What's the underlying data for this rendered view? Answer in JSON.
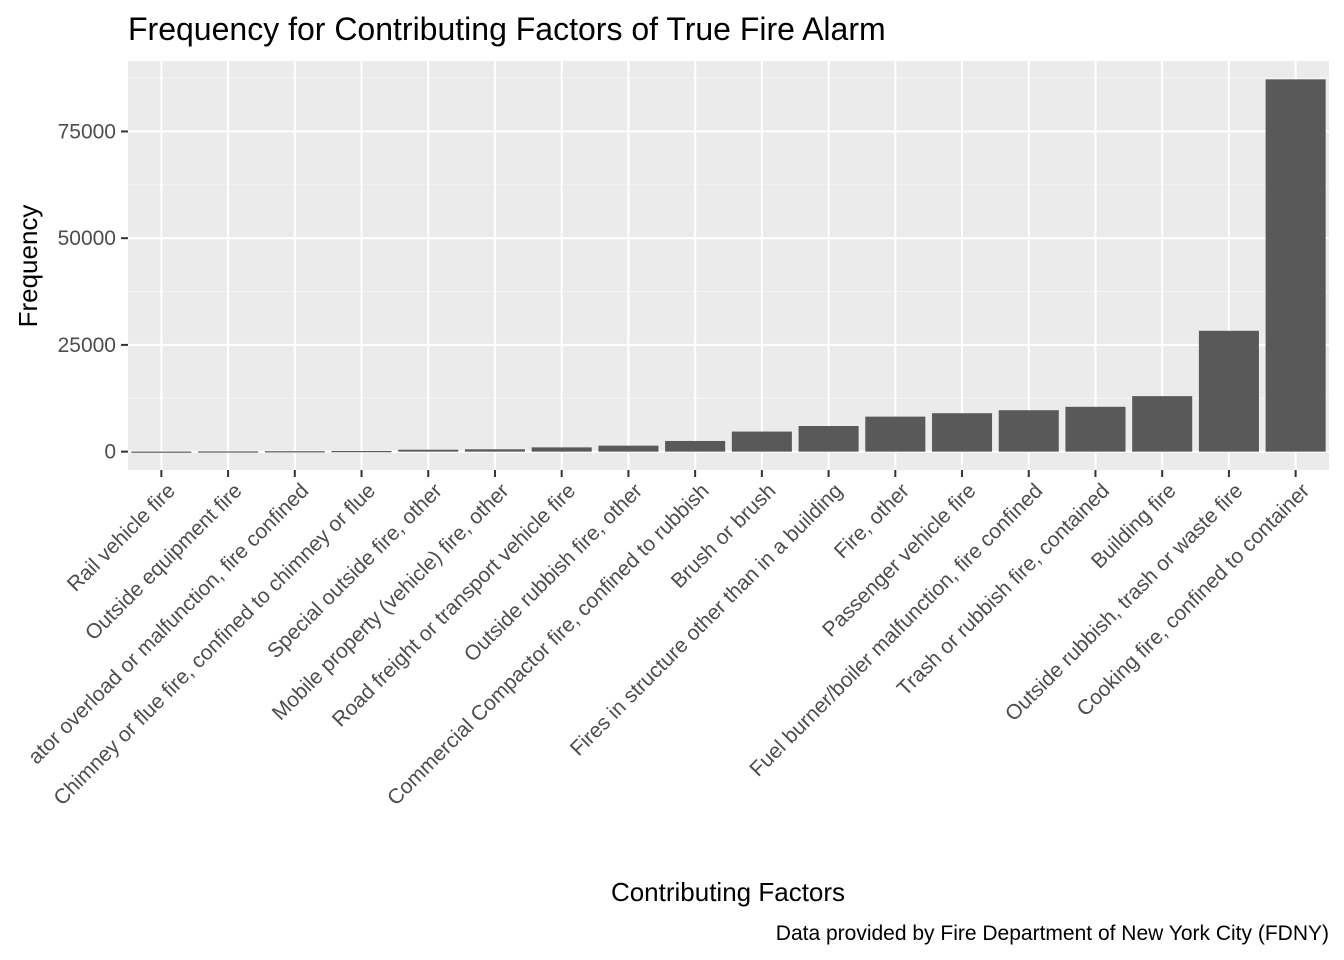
{
  "chart_data": {
    "type": "bar",
    "title": "Frequency for Contributing Factors of True Fire Alarm",
    "xlabel": "Contributing Factors",
    "ylabel": "Frequency",
    "caption": "Data provided by Fire Department of New York City (FDNY)",
    "categories": [
      "Rail vehicle fire",
      "Outside equipment fire",
      "ator overload or malfunction, fire confined",
      "Chimney or flue fire, confined to chimney or flue",
      "Special outside fire, other",
      "Mobile property (vehicle) fire, other",
      "Road freight or transport vehicle fire",
      "Outside rubbish fire, other",
      "Commercial Compactor fire, confined to rubbish",
      "Brush or brush",
      "Fires in structure other than in a building",
      "Fire, other",
      "Passenger vehicle fire",
      "Fuel burner/boiler malfunction, fire confined",
      "Trash or rubbish fire, contained",
      "Building fire",
      "Outside rubbish, trash or waste fire",
      "Cooking fire, confined to container"
    ],
    "values": [
      20,
      60,
      100,
      150,
      450,
      550,
      1000,
      1400,
      2500,
      4700,
      6000,
      8200,
      9000,
      9700,
      10500,
      13000,
      28300,
      87200
    ],
    "ylim": [
      -4300,
      91500
    ],
    "yticks": [
      0,
      25000,
      50000,
      75000
    ],
    "ytick_labels": [
      "0",
      "25000",
      "50000",
      "75000"
    ],
    "grid": true,
    "legend": "none",
    "colors": {
      "bar": "#595959",
      "panel": "#ebebeb",
      "grid_major": "#ffffff",
      "grid_minor": "#f5f5f5",
      "tick_text": "#4d4d4d",
      "tick_mark": "#333333"
    }
  }
}
